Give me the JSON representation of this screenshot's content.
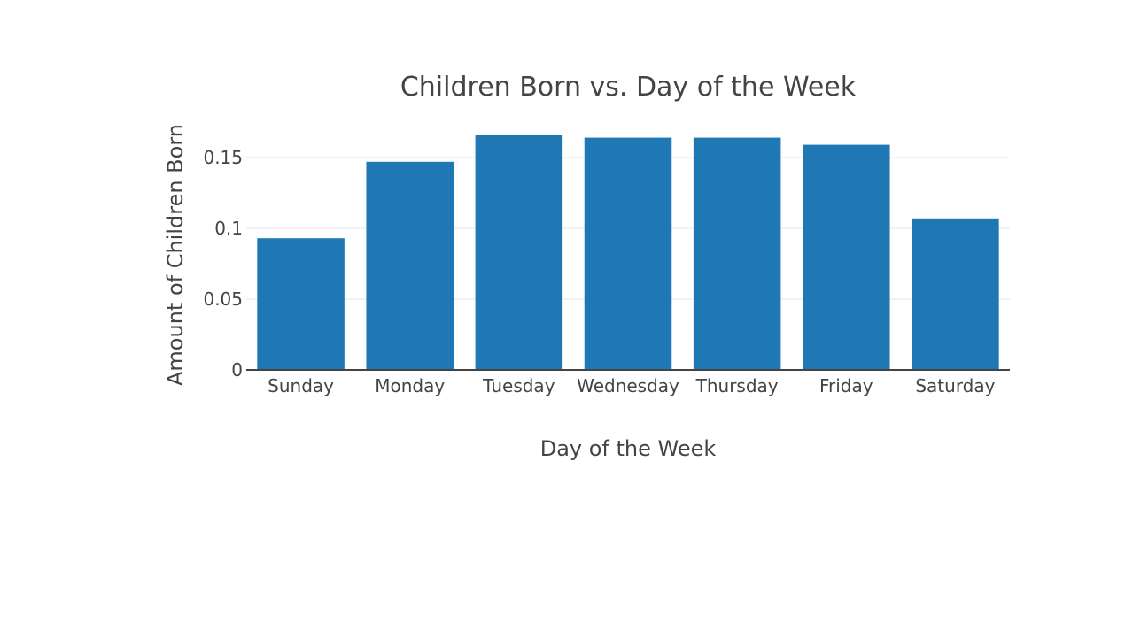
{
  "colors": {
    "bar": "#1f77b4",
    "grid": "#eeeeee",
    "axis_line": "#444444",
    "text": "#444444",
    "background": "#ffffff"
  },
  "chart_data": {
    "type": "bar",
    "title": "Children Born vs. Day of the Week",
    "xlabel": "Day of the Week",
    "ylabel": "Amount of Children Born",
    "categories": [
      "Sunday",
      "Monday",
      "Tuesday",
      "Wednesday",
      "Thursday",
      "Friday",
      "Saturday"
    ],
    "values": [
      0.093,
      0.147,
      0.166,
      0.164,
      0.164,
      0.159,
      0.107
    ],
    "ylim": [
      0,
      0.1675
    ],
    "yticks": [
      0,
      0.05,
      0.1,
      0.15
    ],
    "ytick_labels": [
      "0",
      "0.05",
      "0.1",
      "0.15"
    ],
    "grid": true,
    "legend": "none"
  }
}
